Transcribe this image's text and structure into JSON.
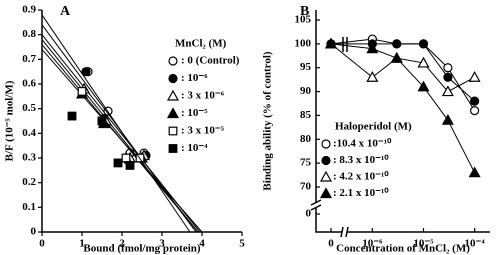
{
  "chart_data": [
    {
      "type": "scatter",
      "panel": "A",
      "xlabel": "Bound (fmol/mg protein)",
      "ylabel": "B/F (10⁻⁵ mol/M)",
      "legend_title": "MnCl₂ (M)",
      "xlim": [
        0,
        5
      ],
      "ylim": [
        0,
        0.9
      ],
      "xticks": [
        0,
        1,
        2,
        3,
        4,
        5
      ],
      "yticks": [
        0,
        0.1,
        0.2,
        0.3,
        0.4,
        0.5,
        0.6,
        0.7,
        0.8,
        0.9
      ],
      "series": [
        {
          "name": ": 0 (Control)",
          "marker": "circle-open",
          "x": [
            1.15,
            1.65,
            2.2,
            2.55
          ],
          "y": [
            0.65,
            0.49,
            0.32,
            0.32
          ],
          "fit": {
            "x": [
              0,
              3.95
            ],
            "y": [
              0.8,
              0
            ]
          }
        },
        {
          "name": ": 10⁻⁶",
          "marker": "circle-filled",
          "x": [
            1.1,
            1.55,
            2.15,
            2.6
          ],
          "y": [
            0.65,
            0.46,
            0.29,
            0.31
          ],
          "fit": {
            "x": [
              0,
              3.85
            ],
            "y": [
              0.84,
              0
            ]
          }
        },
        {
          "name": ": 3 x 10⁻⁶",
          "marker": "triangle-open",
          "x": [
            1.05,
            1.6,
            2.2,
            2.55
          ],
          "y": [
            0.58,
            0.45,
            0.3,
            0.31
          ],
          "fit": {
            "x": [
              0,
              3.9
            ],
            "y": [
              0.78,
              0
            ]
          }
        },
        {
          "name": ": 10⁻⁵",
          "marker": "triangle-filled",
          "x": [
            1.0,
            1.55,
            2.1,
            2.5
          ],
          "y": [
            0.56,
            0.44,
            0.3,
            0.3
          ],
          "fit": {
            "x": [
              0,
              3.9
            ],
            "y": [
              0.76,
              0
            ]
          }
        },
        {
          "name": ": 3 x 10⁻⁵",
          "marker": "square-open",
          "x": [
            1.0,
            1.5,
            2.1,
            2.45
          ],
          "y": [
            0.57,
            0.45,
            0.3,
            0.3
          ],
          "fit": {
            "x": [
              0,
              4.0
            ],
            "y": [
              0.74,
              0
            ]
          }
        },
        {
          "name": ": 10⁻⁴",
          "marker": "square-filled",
          "x": [
            0.75,
            1.5,
            1.9,
            2.2
          ],
          "y": [
            0.47,
            0.45,
            0.28,
            0.27
          ],
          "fit": {
            "x": [
              0,
              3.7
            ],
            "y": [
              0.88,
              0
            ]
          }
        }
      ]
    },
    {
      "type": "line",
      "panel": "B",
      "xlabel": "Concentration of MnCl₂ (M)",
      "ylabel": "Binding ability (% of control)",
      "legend_title": "Haloperidol (M)",
      "xscale": "log",
      "x_break": true,
      "y_break": true,
      "x": [
        0,
        1e-06,
        3e-06,
        1e-05,
        3e-05,
        0.0001
      ],
      "xlim": [
        4e-07,
        0.0002
      ],
      "ylim": [
        70,
        105
      ],
      "xticks": [
        {
          "value": 0,
          "label": "0"
        },
        {
          "value": 1e-06,
          "label": "10⁻⁶"
        },
        {
          "value": 1e-05,
          "label": "10⁻⁵"
        },
        {
          "value": 0.0001,
          "label": "10⁻⁴"
        }
      ],
      "yticks": [
        0,
        70,
        75,
        80,
        85,
        90,
        95,
        100,
        105
      ],
      "series": [
        {
          "name": ":10.4 x 10⁻¹⁰",
          "marker": "circle-open",
          "values": [
            100,
            101,
            100,
            100,
            95,
            86
          ]
        },
        {
          "name": ": 8.3 x 10⁻¹⁰",
          "marker": "circle-filled",
          "values": [
            100,
            100,
            100,
            100,
            93,
            88
          ]
        },
        {
          "name": ": 4.2 x 10⁻¹⁰",
          "marker": "triangle-open",
          "values": [
            100,
            93,
            97,
            96,
            90,
            93
          ]
        },
        {
          "name": ": 2.1 x 10⁻¹⁰",
          "marker": "triangle-filled",
          "values": [
            100,
            99,
            97,
            91,
            84,
            73
          ]
        }
      ]
    }
  ]
}
